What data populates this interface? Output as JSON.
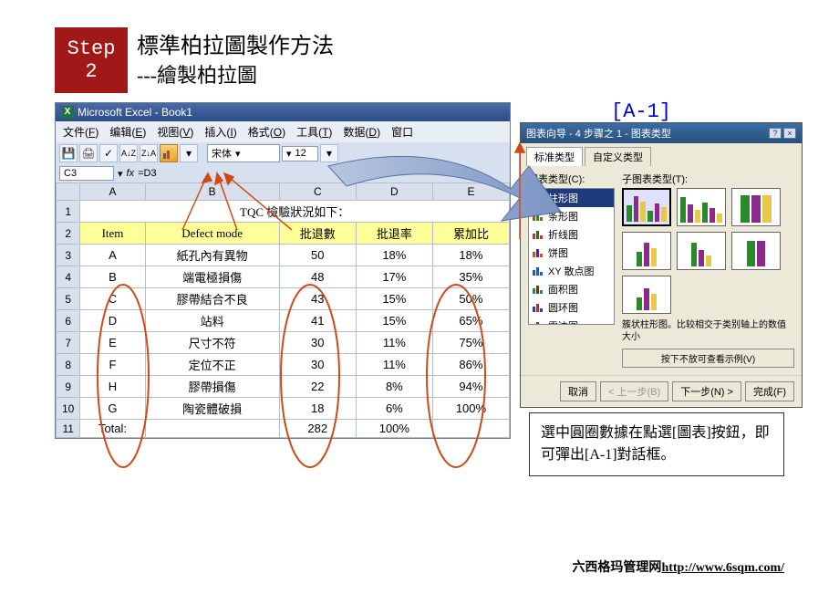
{
  "step": {
    "label": "Step",
    "num": "2"
  },
  "title": {
    "main": "標準柏拉圖製作方法",
    "sub": "---繪製柏拉圖"
  },
  "a1_label": "[A-1]",
  "excel": {
    "title": "Microsoft Excel - Book1",
    "menu": [
      {
        "t": "文件",
        "k": "F"
      },
      {
        "t": "编辑",
        "k": "E"
      },
      {
        "t": "视图",
        "k": "V"
      },
      {
        "t": "插入",
        "k": "I"
      },
      {
        "t": "格式",
        "k": "O"
      },
      {
        "t": "工具",
        "k": "T"
      },
      {
        "t": "数据",
        "k": "D"
      },
      {
        "t": "窗口",
        "k": ""
      }
    ],
    "font_name": "宋体",
    "font_size": "12",
    "cell_ref": "C3",
    "formula": "=D3",
    "col_headers": [
      "A",
      "B",
      "C",
      "D",
      "E"
    ],
    "section_title": "TQC 檢驗狀況如下：",
    "headers": [
      "Item",
      "Defect mode",
      "批退數",
      "批退率",
      "累加比"
    ],
    "rows": [
      {
        "n": "3",
        "c": [
          "A",
          "紙孔內有異物",
          "50",
          "18%",
          "18%"
        ]
      },
      {
        "n": "4",
        "c": [
          "B",
          "端電極損傷",
          "48",
          "17%",
          "35%"
        ]
      },
      {
        "n": "5",
        "c": [
          "C",
          "膠帶結合不良",
          "43",
          "15%",
          "50%"
        ]
      },
      {
        "n": "6",
        "c": [
          "D",
          "站料",
          "41",
          "15%",
          "65%"
        ]
      },
      {
        "n": "7",
        "c": [
          "E",
          "尺寸不符",
          "30",
          "11%",
          "75%"
        ]
      },
      {
        "n": "8",
        "c": [
          "F",
          "定位不正",
          "30",
          "11%",
          "86%"
        ]
      },
      {
        "n": "9",
        "c": [
          "H",
          "膠帶損傷",
          "22",
          "8%",
          "94%"
        ]
      },
      {
        "n": "10",
        "c": [
          "G",
          "陶瓷體破損",
          "18",
          "6%",
          "100%"
        ]
      }
    ],
    "total": {
      "n": "11",
      "label": "Total:",
      "sum": "282",
      "pct": "100%"
    }
  },
  "dialog": {
    "title": "图表向导 - 4 步骤之 1 - 图表类型",
    "tabs": [
      "标准类型",
      "自定义类型"
    ],
    "list_label": "图表类型(C):",
    "sub_label": "子图表类型(T):",
    "types": [
      {
        "t": "柱形图",
        "sel": true,
        "c1": "#2a8a2a",
        "c2": "#1a3a8a"
      },
      {
        "t": "条形图",
        "sel": false,
        "c1": "#a05a2a",
        "c2": "#2a8a2a"
      },
      {
        "t": "折线图",
        "sel": false,
        "c1": "#aa3a3a",
        "c2": "#2a6a2a"
      },
      {
        "t": "饼图",
        "sel": false,
        "c1": "#c05a2a",
        "c2": "#4a2a8a"
      },
      {
        "t": "XY 散点图",
        "sel": false,
        "c1": "#2a5aaa",
        "c2": "#2a5aaa"
      },
      {
        "t": "面积图",
        "sel": false,
        "c1": "#2a8a4a",
        "c2": "#6a3a2a"
      },
      {
        "t": "圆环图",
        "sel": false,
        "c1": "#3a3a9a",
        "c2": "#9a3a3a"
      },
      {
        "t": "雷达图",
        "sel": false,
        "c1": "#2a5aaa",
        "c2": "#aa2a2a"
      },
      {
        "t": "曲面图",
        "sel": false,
        "c1": "#3a3a9a",
        "c2": "#7a2a7a"
      }
    ],
    "subcharts_colors": {
      "s1": [
        "#2a8a2a",
        "#8a2a8a",
        "#e8c848"
      ],
      "s2": [
        "#2a8a2a",
        "#8a2a8a",
        "#e8c848"
      ],
      "s3": [
        "#2a8a2a",
        "#8a2a8a",
        "#e8c848"
      ]
    },
    "desc": "簇状柱形图。比较相交于类别轴上的数值大小",
    "preview_btn": "按下不放可查看示例(V)",
    "buttons": {
      "cancel": "取消",
      "back": "< 上一步(B)",
      "next": "下一步(N) >",
      "finish": "完成(F)"
    }
  },
  "note": "選中圓圈數據在點選[圖表]按鈕，即可彈出[A-1]對話框。",
  "footer": {
    "org": "六西格玛管理网",
    "url": "http://www.6sqm.com/"
  },
  "colors": {
    "step_bg": "#a01818",
    "hdr_yellow": "#ffff99",
    "excel_bar": "#3a5a95",
    "dlg_bar": "#3a6ea5",
    "arrow": "#8ea4cc",
    "circle": "#d04a18"
  }
}
